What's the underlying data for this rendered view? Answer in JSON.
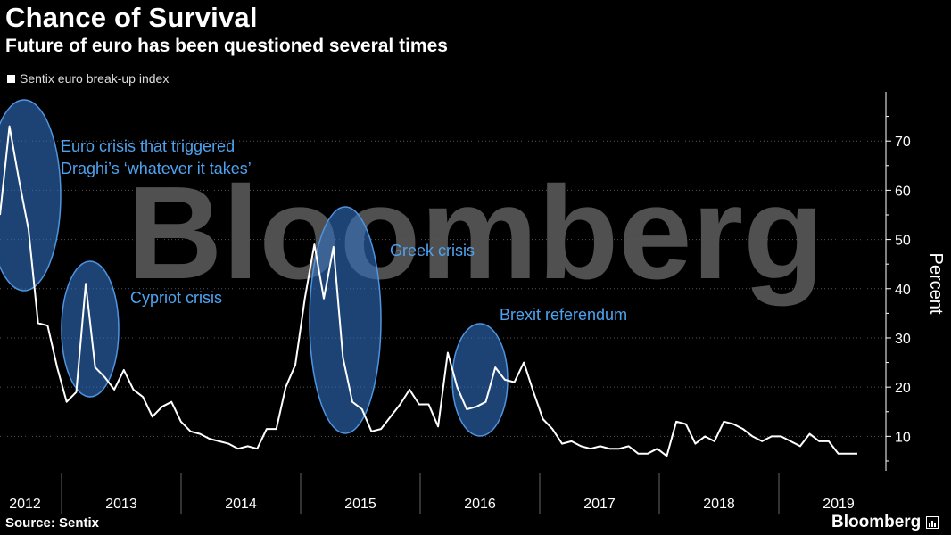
{
  "header": {
    "title": "Chance of Survival",
    "subtitle": "Future of euro has been questioned several times"
  },
  "legend": {
    "label": "Sentix euro break-up index",
    "color": "#ffffff"
  },
  "footer": {
    "source": "Source: Sentix",
    "brand": "Bloomberg"
  },
  "watermark": "Bloomberg",
  "colors": {
    "background": "#000000",
    "line": "#ffffff",
    "highlight": "#2f6fbf",
    "annotation": "#4ea3f0"
  },
  "chart_data": {
    "type": "line",
    "title": "Chance of Survival",
    "subtitle": "Future of euro has been questioned several times",
    "ylabel": "Percent",
    "ylim": [
      3,
      80
    ],
    "yticks": [
      10,
      20,
      30,
      40,
      50,
      60,
      70
    ],
    "xlim": [
      2012.0,
      2019.75
    ],
    "x_tick_labels": [
      "2012",
      "2013",
      "2014",
      "2015",
      "2016",
      "2017",
      "2018",
      "2019"
    ],
    "grid": true,
    "legend_position": "top-left",
    "series": [
      {
        "name": "Sentix euro break-up index",
        "x": [
          2012.0,
          2012.083,
          2012.167,
          2012.25,
          2012.333,
          2012.417,
          2012.5,
          2012.583,
          2012.667,
          2012.75,
          2012.833,
          2012.917,
          2013.0,
          2013.083,
          2013.167,
          2013.25,
          2013.333,
          2013.417,
          2013.5,
          2013.583,
          2013.667,
          2013.75,
          2013.833,
          2013.917,
          2014.0,
          2014.083,
          2014.167,
          2014.25,
          2014.333,
          2014.417,
          2014.5,
          2014.583,
          2014.667,
          2014.75,
          2014.833,
          2014.917,
          2015.0,
          2015.083,
          2015.167,
          2015.25,
          2015.333,
          2015.417,
          2015.5,
          2015.583,
          2015.667,
          2015.75,
          2015.833,
          2015.917,
          2016.0,
          2016.083,
          2016.167,
          2016.25,
          2016.333,
          2016.417,
          2016.5,
          2016.583,
          2016.667,
          2016.75,
          2016.833,
          2016.917,
          2017.0,
          2017.083,
          2017.167,
          2017.25,
          2017.333,
          2017.417,
          2017.5,
          2017.583,
          2017.667,
          2017.75,
          2017.833,
          2017.917,
          2018.0,
          2018.083,
          2018.167,
          2018.25,
          2018.333,
          2018.417,
          2018.5,
          2018.583,
          2018.667,
          2018.75,
          2018.833,
          2018.917,
          2019.0,
          2019.083,
          2019.167,
          2019.25,
          2019.333,
          2019.417,
          2019.5
        ],
        "y": [
          55,
          73,
          62,
          52,
          33,
          32.5,
          24,
          17,
          19,
          41,
          24,
          22,
          19.5,
          23.5,
          19.5,
          18,
          14,
          16,
          17,
          13,
          11,
          10.5,
          9.5,
          9,
          8.5,
          7.5,
          8,
          7.5,
          11.5,
          11.5,
          20,
          24.5,
          38,
          49,
          38,
          48.5,
          26,
          17,
          15.5,
          11,
          11.5,
          14,
          16.5,
          19.5,
          16.5,
          16.5,
          12,
          27,
          20,
          15.5,
          16,
          17,
          24,
          21.5,
          21,
          25,
          19,
          13.5,
          11.5,
          8.5,
          9,
          8,
          7.5,
          8,
          7.5,
          7.5,
          8,
          6.5,
          6.5,
          7.5,
          6,
          13,
          12.5,
          8.5,
          10,
          9,
          13,
          12.5,
          11.5,
          10,
          9,
          10,
          10,
          9,
          8,
          10.5,
          9,
          9,
          6.5,
          6.5,
          6.5
        ]
      }
    ],
    "annotations": [
      {
        "text_lines": [
          "Euro crisis that triggered",
          "Draghi’s ‘whatever it takes’"
        ]
      },
      {
        "text_lines": [
          "Cypriot crisis"
        ]
      },
      {
        "text_lines": [
          "Greek crisis"
        ]
      },
      {
        "text_lines": [
          "Brexit referendum"
        ]
      }
    ]
  }
}
